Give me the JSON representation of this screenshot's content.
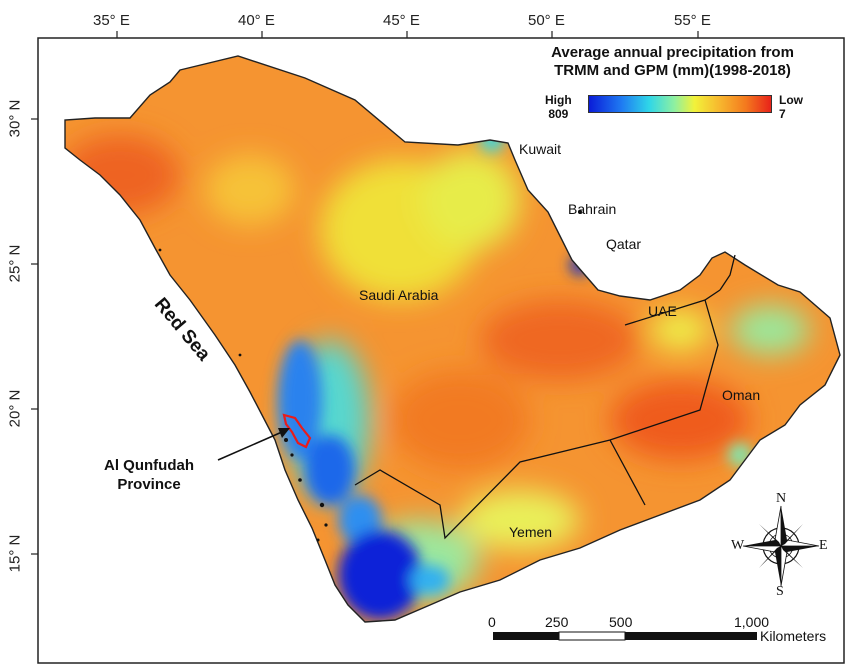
{
  "axes": {
    "lon_labels": [
      "35° E",
      "40° E",
      "45° E",
      "50° E",
      "55° E"
    ],
    "lat_labels": [
      "30° N",
      "25° N",
      "20° N",
      "15° N"
    ]
  },
  "legend": {
    "title_line1": "Average annual precipitation from",
    "title_line2": "TRMM and GPM (mm)(1998-2018)",
    "high_label": "High",
    "high_value": "809",
    "low_label": "Low",
    "low_value": "7",
    "colors": [
      "#0a1cd8",
      "#1f7bf2",
      "#2fd6e8",
      "#8ff0a0",
      "#f2f23a",
      "#f7b62e",
      "#f47a1e",
      "#e8231a"
    ]
  },
  "places": {
    "kuwait": "Kuwait",
    "bahrain": "Bahrain",
    "qatar": "Qatar",
    "uae": "UAE",
    "saudi": "Saudi Arabia",
    "oman": "Oman",
    "yemen": "Yemen",
    "red_sea": "Red Sea",
    "province_line1": "Al Qunfudah",
    "province_line2": "Province"
  },
  "scalebar": {
    "ticks": [
      "0",
      "250",
      "500",
      "1,000"
    ],
    "unit": "Kilometers"
  },
  "compass": {
    "n": "N",
    "s": "S",
    "e": "E",
    "w": "W"
  }
}
